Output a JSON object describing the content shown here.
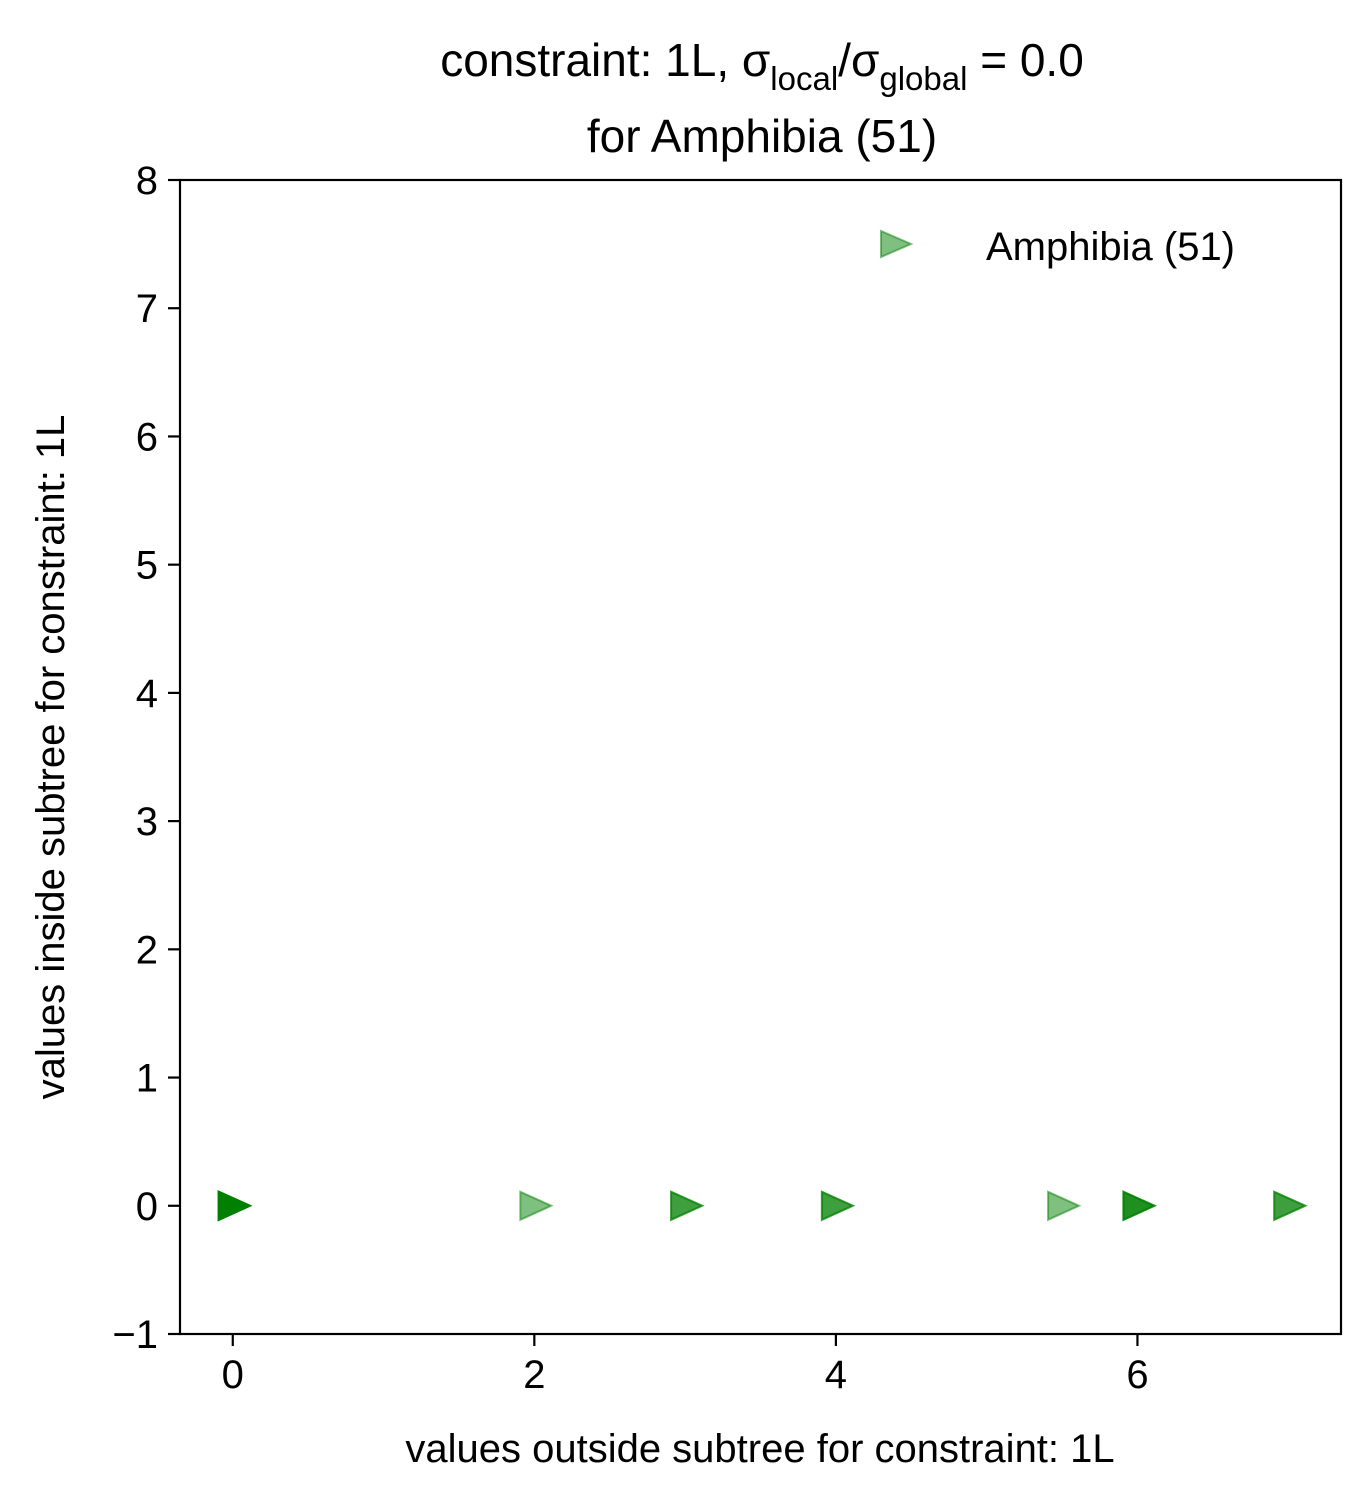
{
  "chart_data": {
    "type": "scatter",
    "title": {
      "line1_prefix": "constraint: 1L, σ",
      "line1_sub1": "local",
      "line1_mid": "/σ",
      "line1_sub2": "global",
      "line1_suffix": " =  0.0",
      "line2": "for Amphibia (51)"
    },
    "xlabel": "values outside subtree for constraint: 1L",
    "ylabel": "values inside subtree for constraint: 1L",
    "xlim": [
      -0.35,
      7.35
    ],
    "ylim": [
      -1,
      8
    ],
    "xticks": [
      0,
      2,
      4,
      6
    ],
    "xtick_labels": [
      "0",
      "2",
      "4",
      "6"
    ],
    "yticks": [
      -1,
      0,
      1,
      2,
      3,
      4,
      5,
      6,
      7,
      8
    ],
    "ytick_labels": [
      "−1",
      "0",
      "1",
      "2",
      "3",
      "4",
      "5",
      "6",
      "7",
      "8"
    ],
    "grid": false,
    "legend_position": "top-right",
    "series": [
      {
        "name": "Amphibia (51)",
        "marker": "triangle-right",
        "color": "#008000",
        "alpha": 0.5,
        "points": [
          {
            "x": 0,
            "y": 0
          },
          {
            "x": 0,
            "y": 0
          },
          {
            "x": 0,
            "y": 0
          },
          {
            "x": 0,
            "y": 0
          },
          {
            "x": 0,
            "y": 0
          },
          {
            "x": 0,
            "y": 0
          },
          {
            "x": 0,
            "y": 0
          },
          {
            "x": 0,
            "y": 0
          },
          {
            "x": 2,
            "y": 0
          },
          {
            "x": 3,
            "y": 0
          },
          {
            "x": 3,
            "y": 0
          },
          {
            "x": 4,
            "y": 0
          },
          {
            "x": 4,
            "y": 0
          },
          {
            "x": 5.5,
            "y": 0
          },
          {
            "x": 6,
            "y": 0
          },
          {
            "x": 6,
            "y": 0
          },
          {
            "x": 6,
            "y": 0
          },
          {
            "x": 7,
            "y": 0
          },
          {
            "x": 7,
            "y": 0
          }
        ]
      }
    ]
  }
}
